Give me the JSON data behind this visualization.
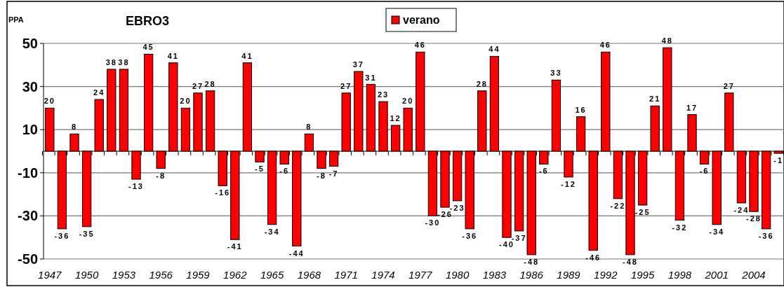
{
  "chart_data": {
    "type": "bar",
    "title": "EBRO3",
    "ylabel": "PPA",
    "categories": [
      "1947",
      null,
      null,
      "1950",
      null,
      null,
      "1953",
      null,
      null,
      "1956",
      null,
      null,
      "1959",
      null,
      null,
      "1962",
      null,
      null,
      "1965",
      null,
      null,
      "1968",
      null,
      null,
      "1971",
      null,
      null,
      "1974",
      null,
      null,
      "1977",
      null,
      null,
      "1980",
      null,
      null,
      "1983",
      null,
      null,
      "1986",
      null,
      null,
      "1989",
      null,
      null,
      "1992",
      null,
      null,
      "1995",
      null,
      null,
      "1998",
      null,
      null,
      "2001",
      null,
      null,
      "2004",
      null,
      null
    ],
    "series": [
      {
        "name": "verano",
        "color": "#ff0000",
        "values": [
          20,
          -36,
          8,
          -35,
          24,
          38,
          38,
          -13,
          45,
          -8,
          41,
          20,
          27,
          28,
          -16,
          -41,
          41,
          -5,
          -34,
          -6,
          -44,
          8,
          -8,
          -7,
          27,
          37,
          31,
          23,
          12,
          20,
          46,
          -30,
          -26,
          -23,
          -36,
          28,
          44,
          -40,
          -37,
          -48,
          -6,
          33,
          -12,
          16,
          -46,
          46,
          -22,
          -48,
          -25,
          21,
          48,
          -32,
          17,
          -6,
          -34,
          27,
          -24,
          -28,
          -36,
          -1
        ]
      }
    ],
    "ylim": [
      -50,
      50
    ],
    "yticks": [
      -50,
      -30,
      -10,
      10,
      30,
      50
    ],
    "grid": "y",
    "legend": "top",
    "data_labels": true
  }
}
